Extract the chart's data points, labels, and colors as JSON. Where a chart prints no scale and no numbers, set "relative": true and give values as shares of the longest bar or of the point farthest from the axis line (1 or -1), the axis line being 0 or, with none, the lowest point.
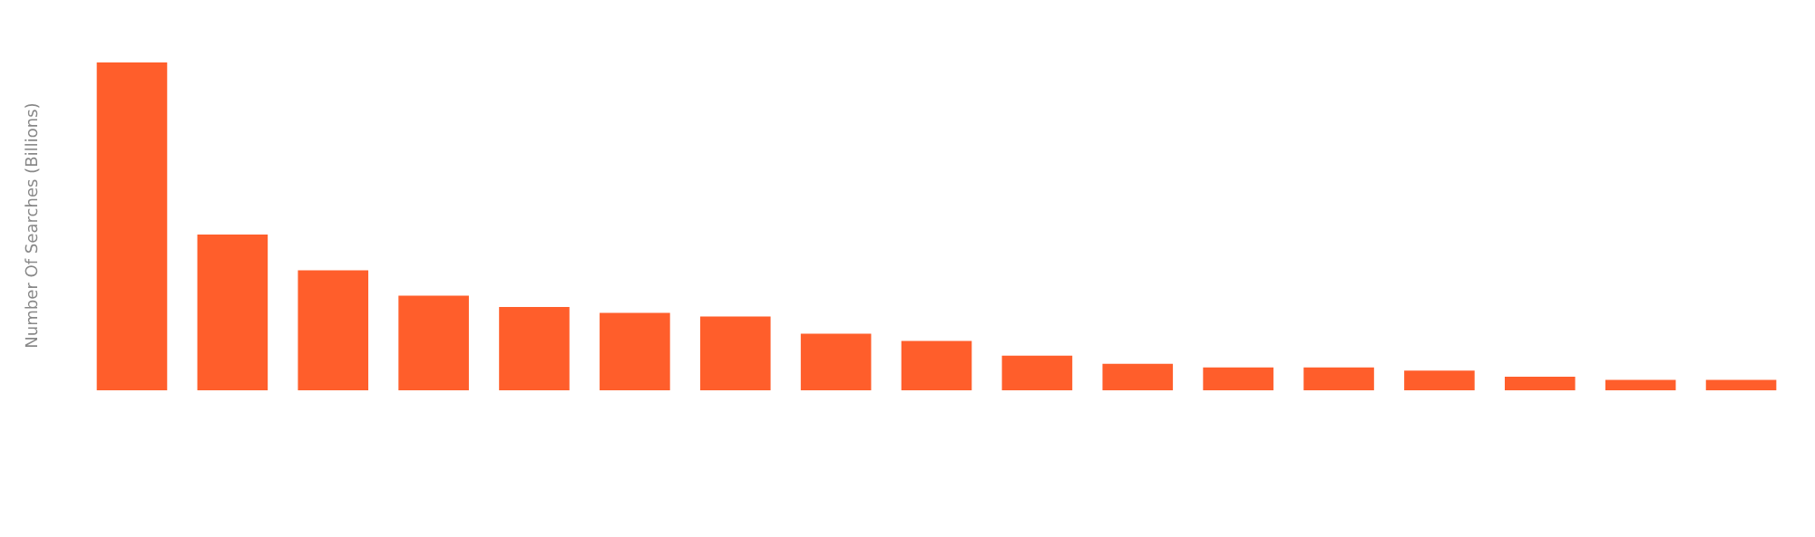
{
  "chart_data": {
    "type": "bar",
    "relative": true,
    "ylabel": "Number Of Searches (Billions)",
    "categories": [
      null,
      null,
      null,
      null,
      null,
      null,
      null,
      null,
      null,
      null,
      null,
      null,
      null,
      null,
      null,
      null,
      null
    ],
    "values": [
      1,
      0.475,
      0.366,
      0.289,
      0.254,
      0.236,
      0.225,
      0.173,
      0.151,
      0.106,
      0.081,
      0.07,
      0.07,
      0.06,
      0.042,
      0.032,
      0.032
    ],
    "color": "#ff5e2b",
    "grid": false,
    "legend": false
  }
}
